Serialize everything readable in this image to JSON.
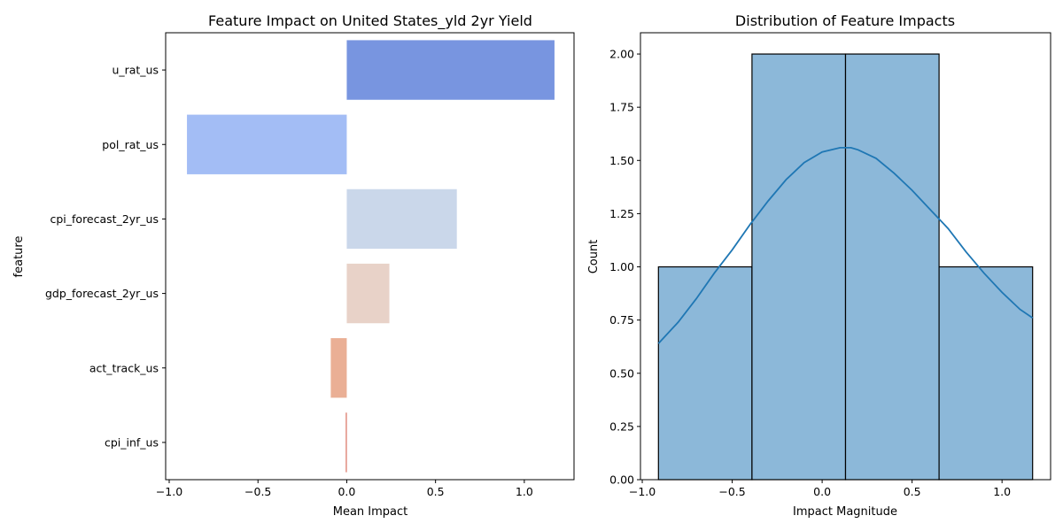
{
  "chart_data": [
    {
      "type": "bar",
      "orientation": "horizontal",
      "title": "Feature Impact on United States_yld 2yr Yield",
      "xlabel": "Mean Impact",
      "ylabel": "feature",
      "categories": [
        "u_rat_us",
        "pol_rat_us",
        "cpi_forecast_2yr_us",
        "gdp_forecast_2yr_us",
        "act_track_us",
        "cpi_inf_us"
      ],
      "values": [
        1.17,
        -0.9,
        0.62,
        0.24,
        -0.09,
        -0.005
      ],
      "colors": [
        "#7895e0",
        "#a3bdf5",
        "#cad7ea",
        "#e8d2c8",
        "#eaaf95",
        "#d1543f"
      ],
      "xlim": [
        -1.02,
        1.28
      ],
      "xticks": [
        -1.0,
        -0.5,
        0.0,
        0.5,
        1.0
      ],
      "xtick_labels": [
        "−1.0",
        "−0.5",
        "0.0",
        "0.5",
        "1.0"
      ],
      "grid": false
    },
    {
      "type": "histogram",
      "title": "Distribution of Feature Impacts",
      "xlabel": "Impact Magnitude",
      "ylabel": "Count",
      "bin_edges": [
        -0.91,
        -0.39,
        0.13,
        0.65,
        1.17
      ],
      "counts": [
        1,
        2,
        2,
        1
      ],
      "bar_color": "#8cb8d9",
      "kde_color": "#1f77b4",
      "kde": {
        "x": [
          -0.91,
          -0.8,
          -0.7,
          -0.6,
          -0.5,
          -0.4,
          -0.3,
          -0.2,
          -0.1,
          0.0,
          0.1,
          0.16,
          0.2,
          0.3,
          0.4,
          0.5,
          0.6,
          0.7,
          0.8,
          0.9,
          1.0,
          1.1,
          1.17
        ],
        "y": [
          0.64,
          0.74,
          0.85,
          0.97,
          1.08,
          1.2,
          1.31,
          1.41,
          1.49,
          1.54,
          1.56,
          1.56,
          1.55,
          1.51,
          1.44,
          1.36,
          1.27,
          1.18,
          1.07,
          0.97,
          0.88,
          0.8,
          0.76
        ]
      },
      "xlim": [
        -1.01,
        1.27
      ],
      "ylim": [
        0,
        2.1
      ],
      "xticks": [
        -1.0,
        -0.5,
        0.0,
        0.5,
        1.0
      ],
      "xtick_labels": [
        "−1.0",
        "−0.5",
        "0.0",
        "0.5",
        "1.0"
      ],
      "yticks": [
        0,
        0.25,
        0.5,
        0.75,
        1.0,
        1.25,
        1.5,
        1.75,
        2.0
      ],
      "ytick_labels": [
        "0.00",
        "0.25",
        "0.50",
        "0.75",
        "1.00",
        "1.25",
        "1.50",
        "1.75",
        "2.00"
      ],
      "grid": false
    }
  ]
}
